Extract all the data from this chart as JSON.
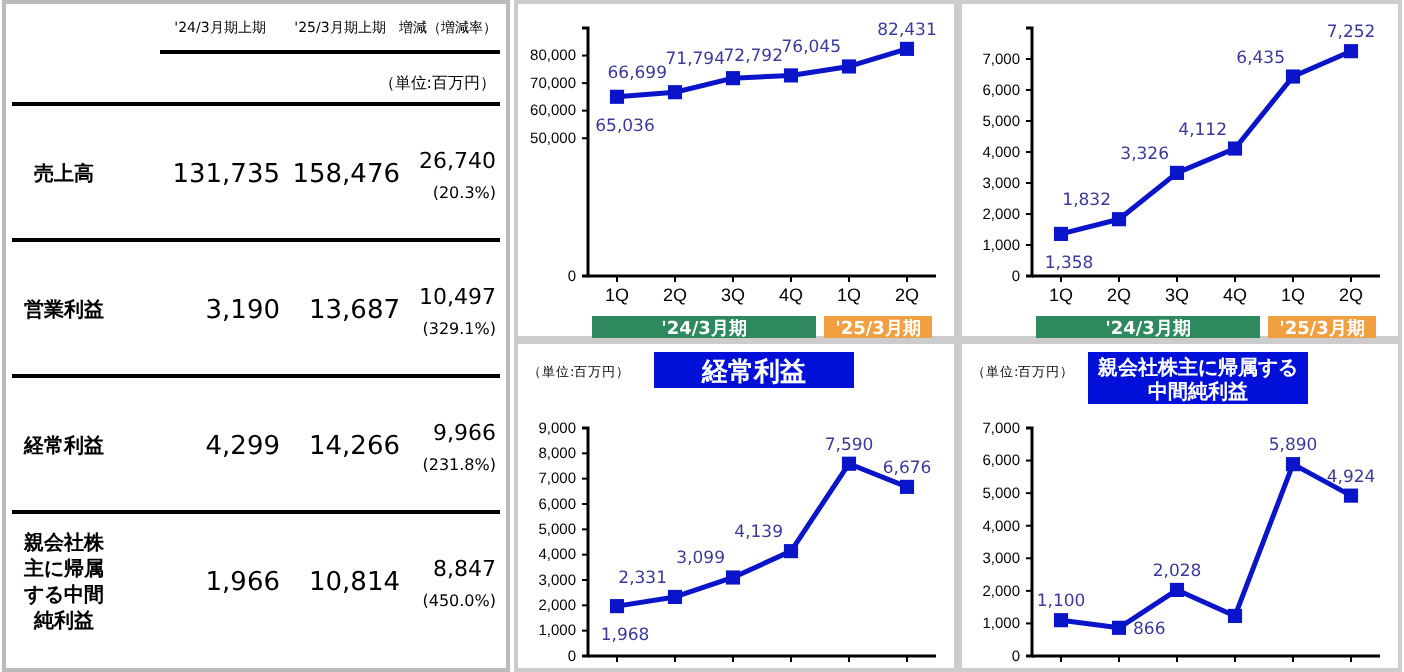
{
  "chart_data": [
    {
      "type": "other",
      "categories": [
        "売上高",
        "営業利益",
        "経常利益",
        "親会社株主に帰属する中間純利益"
      ],
      "annotations": [
        "（単位:百万円）"
      ],
      "series": [
        {
          "name": "'24/3月期上期",
          "values": [
            131735,
            3190,
            4299,
            1966
          ],
          "value_labels": [
            "131,735",
            "3,190",
            "4,299",
            "1,966"
          ]
        },
        {
          "name": "'25/3月期上期",
          "values": [
            158476,
            13687,
            14266,
            10814
          ],
          "value_labels": [
            "158,476",
            "13,687",
            "14,266",
            "10,814"
          ]
        },
        {
          "name": "増減（増減率）",
          "values": [
            26740,
            10497,
            9966,
            8847
          ],
          "value_labels": [
            "26,740 (20.3%)",
            "10,497 (329.1%)",
            "9,966 (231.8%)",
            "8,847 (450.0%)"
          ]
        }
      ]
    },
    {
      "type": "line",
      "categories": [
        "1Q",
        "2Q",
        "3Q",
        "4Q",
        "1Q",
        "2Q"
      ],
      "series": [
        {
          "color": "#0a14c8",
          "values": [
            65036,
            66699,
            71794,
            72792,
            76045,
            82431
          ],
          "value_labels": [
            "65,036",
            "66,699",
            "71,794",
            "72,792",
            "76,045",
            "82,431"
          ]
        }
      ],
      "ylim": [
        0,
        90000
      ],
      "yticks": [
        0,
        {
          "value": 50000,
          "label": "50,000"
        },
        {
          "value": 60000,
          "label": "60,000"
        },
        {
          "value": 70000,
          "label": "70,000"
        },
        {
          "value": 80000,
          "label": "80,000"
        }
      ],
      "marker": "square",
      "annotations": [
        "'24/3月期",
        "'25/3月期"
      ]
    },
    {
      "type": "line",
      "categories": [
        "1Q",
        "2Q",
        "3Q",
        "4Q",
        "1Q",
        "2Q"
      ],
      "series": [
        {
          "color": "#0a14c8",
          "values": [
            1358,
            1832,
            3326,
            4112,
            6435,
            7252
          ],
          "value_labels": [
            "1,358",
            "1,832",
            "3,326",
            "4,112",
            "6,435",
            "7,252"
          ]
        }
      ],
      "ylim": [
        0,
        8000
      ],
      "yticks": [
        {
          "value": 0,
          "label": "0"
        },
        {
          "value": 1000,
          "label": "1,000"
        },
        {
          "value": 2000,
          "label": "2,000"
        },
        {
          "value": 3000,
          "label": "3,000"
        },
        {
          "value": 4000,
          "label": "4,000"
        },
        {
          "value": 5000,
          "label": "5,000"
        },
        {
          "value": 6000,
          "label": "6,000"
        },
        {
          "value": 7000,
          "label": "7,000"
        }
      ],
      "marker": "square",
      "annotations": [
        "'24/3月期",
        "'25/3月期"
      ]
    },
    {
      "type": "line",
      "title": "経常利益",
      "categories": [
        null,
        null,
        null,
        null,
        null,
        null
      ],
      "series": [
        {
          "color": "#0a14c8",
          "values": [
            1968,
            2331,
            3099,
            4139,
            7590,
            6676
          ],
          "value_labels": [
            "1,968",
            "2,331",
            "3,099",
            "4,139",
            "7,590",
            "6,676"
          ]
        }
      ],
      "ylim": [
        0,
        9000
      ],
      "yticks": [
        {
          "value": 0,
          "label": "0"
        },
        {
          "value": 1000,
          "label": "1,000"
        },
        {
          "value": 2000,
          "label": "2,000"
        },
        {
          "value": 3000,
          "label": "3,000"
        },
        {
          "value": 4000,
          "label": "4,000"
        },
        {
          "value": 5000,
          "label": "5,000"
        },
        {
          "value": 6000,
          "label": "6,000"
        },
        {
          "value": 7000,
          "label": "7,000"
        },
        {
          "value": 8000,
          "label": "8,000"
        },
        {
          "value": 9000,
          "label": "9,000"
        }
      ],
      "marker": "square",
      "annotations": [
        "（単位:百万円）"
      ]
    },
    {
      "type": "line",
      "title": "親会社株主に帰属する中間純利益",
      "categories": [
        null,
        null,
        null,
        null,
        null,
        null
      ],
      "series": [
        {
          "color": "#0a14c8",
          "values": [
            1100,
            866,
            2028,
            1230,
            5890,
            4924
          ],
          "value_labels": [
            "1,100",
            "866",
            "2,028",
            null,
            "5,890",
            "4,924"
          ]
        }
      ],
      "ylim": [
        0,
        7000
      ],
      "yticks": [
        {
          "value": 0,
          "label": "0"
        },
        {
          "value": 1000,
          "label": "1,000"
        },
        {
          "value": 2000,
          "label": "2,000"
        },
        {
          "value": 3000,
          "label": "3,000"
        },
        {
          "value": 4000,
          "label": "4,000"
        },
        {
          "value": 5000,
          "label": "5,000"
        },
        {
          "value": 6000,
          "label": "6,000"
        },
        {
          "value": 7000,
          "label": "7,000"
        }
      ],
      "marker": "square",
      "annotations": [
        "（単位:百万円）"
      ]
    }
  ]
}
